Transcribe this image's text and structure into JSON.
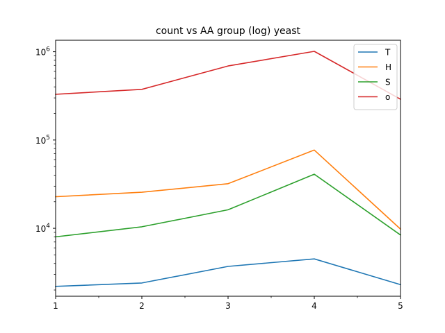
{
  "chart_data": {
    "type": "line",
    "title": "count vs AA group (log) yeast",
    "xlabel": "",
    "ylabel": "",
    "yscale": "log",
    "x": [
      1,
      2,
      3,
      4,
      5
    ],
    "xlim": [
      1,
      5
    ],
    "ylim": [
      1700,
      1350000
    ],
    "x_major_ticks": [
      "1",
      "2",
      "3",
      "4",
      "5"
    ],
    "x_minor_ticks": [
      1.5,
      2.5,
      3.5,
      4.5
    ],
    "y_major_ticks": [
      {
        "value": 10000,
        "base": "10",
        "exp": "4"
      },
      {
        "value": 100000,
        "base": "10",
        "exp": "5"
      },
      {
        "value": 1000000,
        "base": "10",
        "exp": "6"
      }
    ],
    "grid": false,
    "legend_position": "top-right",
    "series": [
      {
        "name": "T",
        "color": "#1f77b4",
        "values": [
          2200,
          2400,
          3700,
          4500,
          2300
        ]
      },
      {
        "name": "H",
        "color": "#ff7f0e",
        "values": [
          22800,
          25600,
          32000,
          77000,
          9800
        ]
      },
      {
        "name": "S",
        "color": "#2ca02c",
        "values": [
          8000,
          10400,
          16200,
          41000,
          8400
        ]
      },
      {
        "name": "o",
        "color": "#d62728",
        "values": [
          330000,
          375000,
          690000,
          1010000,
          290000
        ]
      }
    ]
  }
}
